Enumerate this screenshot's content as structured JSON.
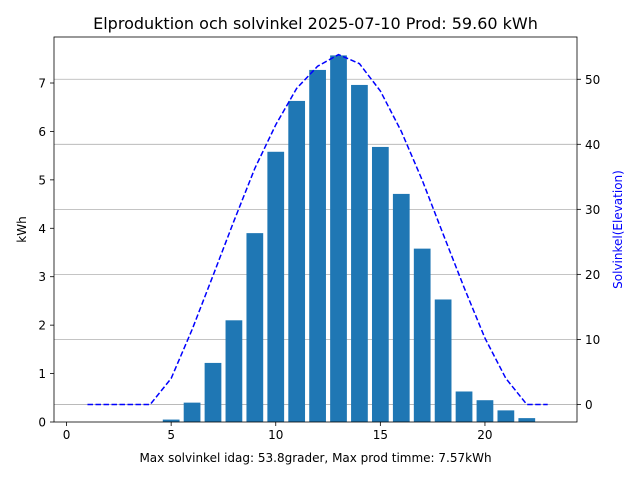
{
  "chart_data": {
    "type": "bar",
    "title": "Elproduktion och solvinkel 2025-07-10 Prod: 59.60 kWh",
    "xlabel": "Max solvinkel idag: 53.8grader, Max prod timme: 7.57kWh",
    "ylabel_left": "kWh",
    "ylabel_right": "Solvinkel(Elevation)",
    "xlim": [
      -0.6,
      24.4
    ],
    "ylim_left": [
      0,
      7.95
    ],
    "ylim_right": [
      -2.7,
      56.5
    ],
    "x_ticks": [
      0,
      5,
      10,
      15,
      20
    ],
    "y_left_ticks": [
      0,
      1,
      2,
      3,
      4,
      5,
      6,
      7
    ],
    "y_right_ticks": [
      0,
      10,
      20,
      30,
      40,
      50
    ],
    "grid": "horizontal, right axis",
    "colors": {
      "bar": "#1f77b4",
      "line": "#0000ff",
      "grid": "#b0b0b0",
      "right_label": "#0000ff"
    },
    "series": [
      {
        "type": "bar",
        "axis": "left",
        "x": [
          5,
          6,
          7,
          8,
          9,
          10,
          11,
          12,
          13,
          14,
          15,
          16,
          17,
          18,
          19,
          20,
          21,
          22
        ],
        "values": [
          0.05,
          0.4,
          1.22,
          2.1,
          3.9,
          5.58,
          6.63,
          7.27,
          7.57,
          6.96,
          5.68,
          4.71,
          3.58,
          2.53,
          0.63,
          0.45,
          0.24,
          0.08
        ]
      },
      {
        "type": "line",
        "style": "dashed",
        "axis": "right",
        "x": [
          1,
          2,
          3,
          4,
          5,
          6,
          7,
          8,
          9,
          10,
          11,
          12,
          13,
          14,
          15,
          16,
          17,
          18,
          19,
          20,
          21,
          22,
          23
        ],
        "values": [
          0,
          0,
          0,
          0,
          4.0,
          11.5,
          19.8,
          28.2,
          36.3,
          43.0,
          48.6,
          52.0,
          53.8,
          52.4,
          48.2,
          42.0,
          34.5,
          26.2,
          18.0,
          10.2,
          4.0,
          0,
          0
        ]
      }
    ]
  }
}
